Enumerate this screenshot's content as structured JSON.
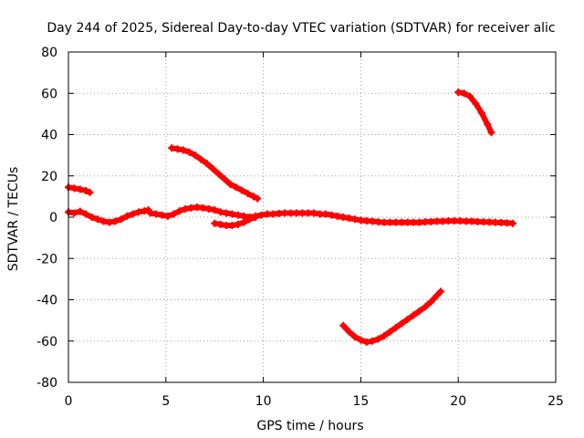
{
  "chart_data": {
    "type": "scatter",
    "title": "Day 244 of 2025, Sidereal Day-to-day VTEC variation (SDTVAR) for receiver alic",
    "xlabel": "GPS time / hours",
    "ylabel": "SDTVAR / TECUs",
    "xlim": [
      0,
      25
    ],
    "ylim": [
      -80,
      80
    ],
    "x_ticks": [
      0,
      5,
      10,
      15,
      20,
      25
    ],
    "y_ticks": [
      -80,
      -60,
      -40,
      -20,
      0,
      20,
      40,
      60,
      80
    ],
    "grid": true,
    "marker_color": "#ff0000",
    "series": [
      {
        "points": [
          [
            0.0,
            2.5
          ],
          [
            0.3,
            2.0
          ],
          [
            0.6,
            2.8
          ],
          [
            0.9,
            1.5
          ],
          [
            1.2,
            0.0
          ],
          [
            1.5,
            -1.0
          ],
          [
            1.8,
            -2.0
          ],
          [
            2.1,
            -2.5
          ],
          [
            2.4,
            -2.0
          ],
          [
            2.7,
            -1.0
          ],
          [
            3.0,
            0.5
          ],
          [
            3.3,
            1.5
          ],
          [
            3.6,
            2.5
          ],
          [
            3.9,
            3.0
          ],
          [
            4.1,
            3.5
          ],
          [
            4.2,
            2.0
          ],
          [
            4.5,
            1.5
          ],
          [
            4.8,
            1.0
          ],
          [
            5.1,
            0.5
          ],
          [
            5.4,
            1.5
          ],
          [
            5.7,
            3.0
          ],
          [
            6.0,
            4.0
          ],
          [
            6.3,
            4.5
          ],
          [
            6.6,
            4.8
          ],
          [
            6.9,
            4.5
          ],
          [
            7.2,
            4.0
          ],
          [
            7.5,
            3.5
          ],
          [
            7.8,
            2.5
          ],
          [
            8.1,
            2.0
          ],
          [
            8.4,
            1.5
          ],
          [
            8.7,
            1.0
          ],
          [
            9.0,
            0.5
          ],
          [
            9.3,
            0.0
          ],
          [
            9.6,
            0.5
          ],
          [
            9.9,
            1.0
          ],
          [
            10.2,
            1.5
          ],
          [
            10.5,
            1.5
          ],
          [
            10.8,
            1.8
          ],
          [
            11.1,
            2.0
          ],
          [
            11.4,
            2.0
          ],
          [
            11.7,
            2.0
          ],
          [
            12.0,
            2.0
          ],
          [
            12.3,
            2.0
          ],
          [
            12.6,
            2.0
          ],
          [
            12.9,
            1.5
          ],
          [
            13.2,
            1.5
          ],
          [
            13.5,
            1.0
          ],
          [
            13.8,
            0.5
          ],
          [
            14.1,
            0.0
          ],
          [
            14.4,
            -0.5
          ],
          [
            14.7,
            -1.0
          ],
          [
            15.0,
            -1.5
          ],
          [
            15.3,
            -1.8
          ],
          [
            15.6,
            -2.0
          ],
          [
            15.9,
            -2.3
          ],
          [
            16.2,
            -2.5
          ],
          [
            16.5,
            -2.5
          ],
          [
            16.8,
            -2.5
          ],
          [
            17.1,
            -2.5
          ],
          [
            17.4,
            -2.5
          ],
          [
            17.7,
            -2.5
          ],
          [
            18.0,
            -2.5
          ],
          [
            18.3,
            -2.3
          ],
          [
            18.6,
            -2.2
          ],
          [
            18.9,
            -2.0
          ],
          [
            19.2,
            -2.0
          ],
          [
            19.5,
            -1.8
          ],
          [
            19.8,
            -1.8
          ],
          [
            20.1,
            -1.8
          ],
          [
            20.4,
            -2.0
          ],
          [
            20.7,
            -2.0
          ],
          [
            21.0,
            -2.2
          ],
          [
            21.3,
            -2.3
          ],
          [
            21.6,
            -2.4
          ],
          [
            21.9,
            -2.5
          ],
          [
            22.2,
            -2.6
          ],
          [
            22.5,
            -2.8
          ],
          [
            22.8,
            -3.0
          ]
        ]
      },
      {
        "points": [
          [
            0.0,
            14.5
          ],
          [
            0.3,
            14.0
          ],
          [
            0.6,
            13.5
          ],
          [
            0.9,
            12.8
          ],
          [
            1.1,
            12.0
          ]
        ]
      },
      {
        "points": [
          [
            5.3,
            33.5
          ],
          [
            5.6,
            33.0
          ],
          [
            5.9,
            32.5
          ],
          [
            6.2,
            31.5
          ],
          [
            6.5,
            30.0
          ],
          [
            6.8,
            28.0
          ],
          [
            7.1,
            26.0
          ],
          [
            7.4,
            23.5
          ],
          [
            7.7,
            21.0
          ],
          [
            8.0,
            18.5
          ],
          [
            8.3,
            16.0
          ],
          [
            8.6,
            14.5
          ],
          [
            8.9,
            13.0
          ],
          [
            9.2,
            11.5
          ],
          [
            9.5,
            10.0
          ],
          [
            9.7,
            9.0
          ]
        ]
      },
      {
        "points": [
          [
            7.5,
            -3.0
          ],
          [
            7.8,
            -3.5
          ],
          [
            8.1,
            -4.0
          ],
          [
            8.4,
            -4.0
          ],
          [
            8.7,
            -3.5
          ],
          [
            9.0,
            -2.5
          ],
          [
            9.3,
            -1.0
          ],
          [
            9.6,
            0.0
          ]
        ]
      },
      {
        "points": [
          [
            20.0,
            60.5
          ],
          [
            20.3,
            60.0
          ],
          [
            20.6,
            58.5
          ],
          [
            20.9,
            55.0
          ],
          [
            21.2,
            50.5
          ],
          [
            21.5,
            45.0
          ],
          [
            21.7,
            41.0
          ]
        ]
      },
      {
        "points": [
          [
            14.1,
            -52.5
          ],
          [
            14.4,
            -55.5
          ],
          [
            14.7,
            -58.0
          ],
          [
            15.0,
            -59.5
          ],
          [
            15.3,
            -60.5
          ],
          [
            15.6,
            -60.0
          ],
          [
            15.9,
            -59.0
          ],
          [
            16.2,
            -57.5
          ],
          [
            16.5,
            -55.5
          ],
          [
            16.8,
            -53.5
          ],
          [
            17.1,
            -51.5
          ],
          [
            17.4,
            -49.5
          ],
          [
            17.7,
            -47.5
          ],
          [
            18.0,
            -45.5
          ],
          [
            18.3,
            -43.5
          ],
          [
            18.6,
            -41.0
          ],
          [
            18.9,
            -38.0
          ],
          [
            19.1,
            -36.0
          ]
        ]
      }
    ]
  }
}
